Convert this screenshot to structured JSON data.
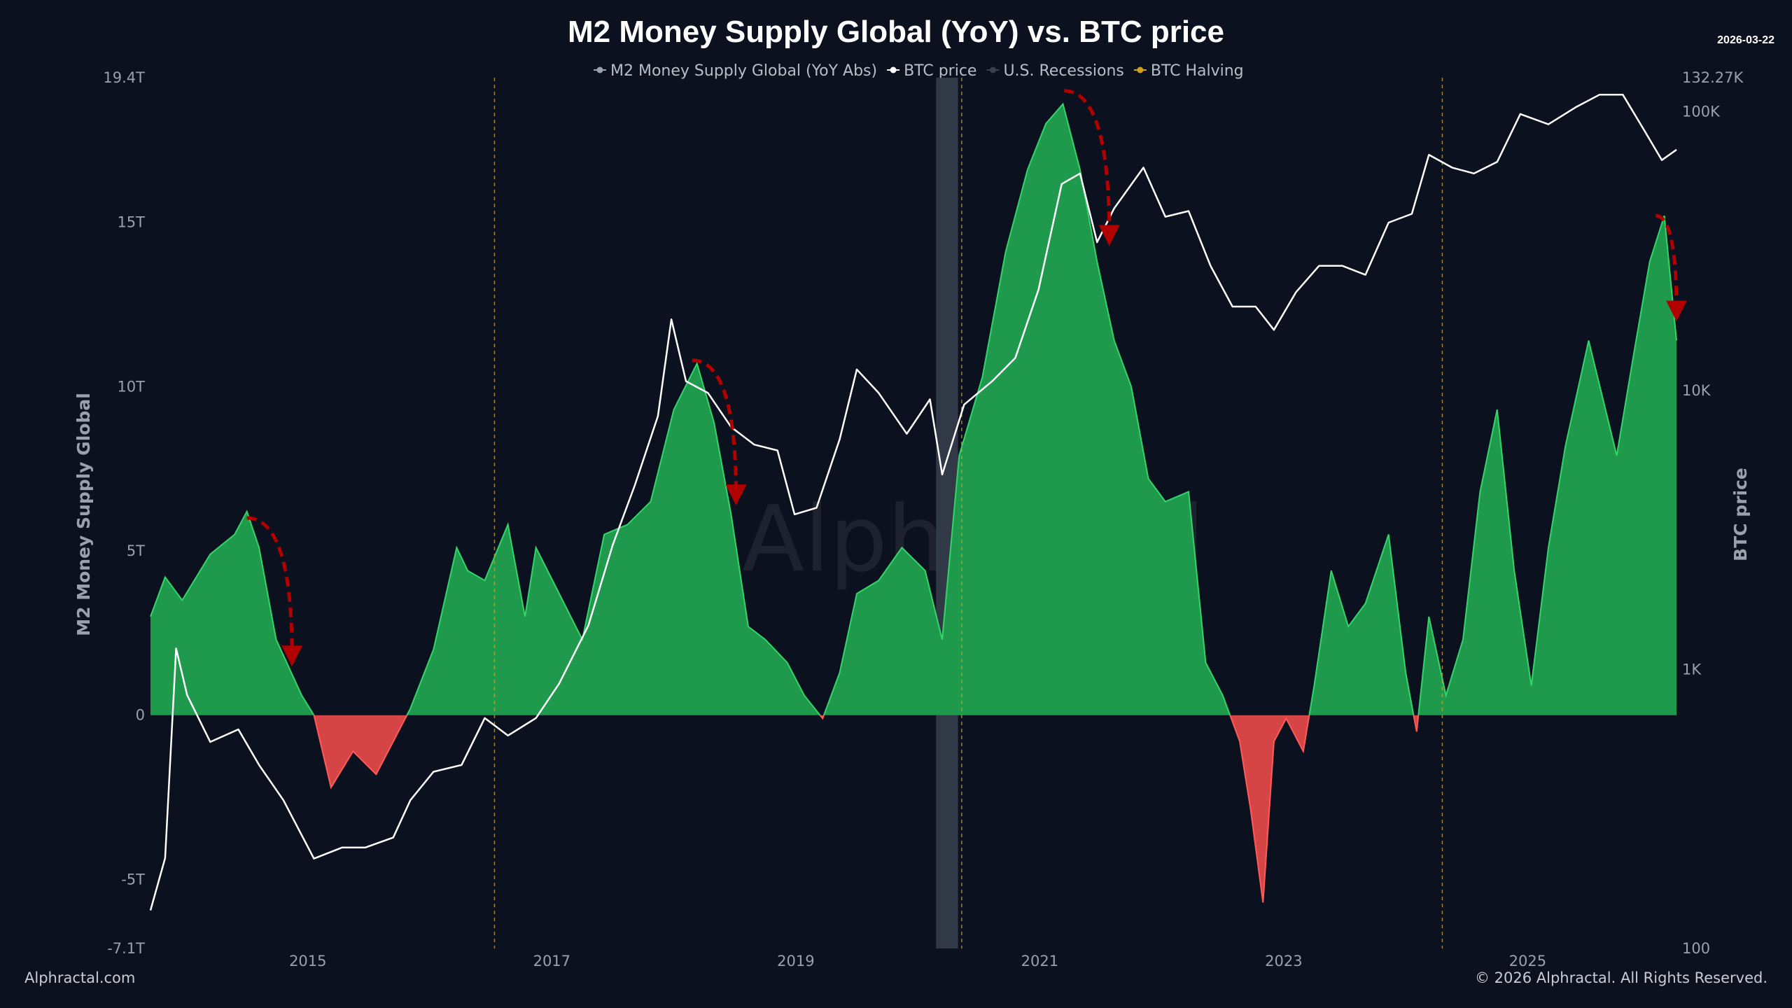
{
  "chart_data": {
    "type": "area",
    "title": "M2 Money Supply Global (YoY) vs. BTC price",
    "date_stamp": "2026-03-22",
    "ylabel": "M2 Money Supply Global",
    "y2label": "BTC price",
    "ylim": [
      -7.1,
      19.4
    ],
    "y2lim": [
      100,
      132270
    ],
    "y2scale": "log",
    "xlim": [
      2013.71,
      2026.22
    ],
    "grid": false,
    "legend_position": "top-center",
    "x_ticks": [
      "2015",
      "2017",
      "2019",
      "2021",
      "2023",
      "2025"
    ],
    "x_tick_values": [
      2015,
      2017,
      2019,
      2021,
      2023,
      2025
    ],
    "y_ticks": [
      "19.4T",
      "15T",
      "10T",
      "5T",
      "0",
      "-5T",
      "-7.1T"
    ],
    "y_tick_values": [
      19.4,
      15,
      10,
      5,
      0,
      -5,
      -7.1
    ],
    "y2_ticks": [
      "132.27K",
      "100K",
      "10K",
      "1K",
      "100"
    ],
    "y2_tick_values": [
      132270,
      100000,
      10000,
      1000,
      100
    ],
    "legend": [
      {
        "label": "M2 Money Supply Global (YoY Abs)",
        "color": "#9aa1ad"
      },
      {
        "label": "BTC price",
        "color": "#ffffff"
      },
      {
        "label": "U.S. Recessions",
        "color": "#3a414e"
      },
      {
        "label": "BTC Halving",
        "color": "#d4a017"
      }
    ],
    "colors": {
      "positive": "#1f9a4c",
      "positive_edge": "#35d46a",
      "negative": "#d64545",
      "btc": "#ffffff",
      "background": "#0b111e",
      "annotation": "#b00000"
    },
    "series": [
      {
        "name": "M2 Money Supply Global (YoY Abs)",
        "unit": "T",
        "x": [
          2013.71,
          2013.83,
          2013.97,
          2014.2,
          2014.4,
          2014.5,
          2014.6,
          2014.74,
          2014.95,
          2015.05,
          2015.19,
          2015.37,
          2015.56,
          2015.7,
          2015.84,
          2016.03,
          2016.22,
          2016.31,
          2016.45,
          2016.64,
          2016.78,
          2016.87,
          2017.06,
          2017.25,
          2017.43,
          2017.62,
          2017.81,
          2018.0,
          2018.19,
          2018.33,
          2018.47,
          2018.61,
          2018.75,
          2018.93,
          2019.07,
          2019.22,
          2019.36,
          2019.5,
          2019.68,
          2019.87,
          2020.06,
          2020.2,
          2020.34,
          2020.53,
          2020.72,
          2020.9,
          2021.05,
          2021.19,
          2021.33,
          2021.47,
          2021.61,
          2021.75,
          2021.89,
          2022.03,
          2022.22,
          2022.36,
          2022.5,
          2022.64,
          2022.73,
          2022.83,
          2022.92,
          2023.02,
          2023.16,
          2023.25,
          2023.39,
          2023.53,
          2023.67,
          2023.86,
          2024.0,
          2024.09,
          2024.19,
          2024.33,
          2024.47,
          2024.61,
          2024.75,
          2024.89,
          2025.03,
          2025.17,
          2025.31,
          2025.5,
          2025.73,
          2025.87,
          2026.0,
          2026.12,
          2026.22
        ],
        "values": [
          3.0,
          4.2,
          3.5,
          4.9,
          5.5,
          6.2,
          5.1,
          2.3,
          0.6,
          0,
          -2.2,
          -1.1,
          -1.8,
          -0.8,
          0.2,
          2.0,
          5.1,
          4.4,
          4.1,
          5.8,
          3.0,
          5.1,
          3.7,
          2.3,
          5.5,
          5.8,
          6.5,
          9.3,
          10.7,
          8.9,
          6.1,
          2.7,
          2.3,
          1.6,
          0.6,
          -0.1,
          1.3,
          3.7,
          4.1,
          5.1,
          4.4,
          2.3,
          7.9,
          10.3,
          14.1,
          16.6,
          18.0,
          18.6,
          16.6,
          13.8,
          11.4,
          10.0,
          7.2,
          6.5,
          6.8,
          1.6,
          0.6,
          -0.8,
          -2.9,
          -5.7,
          -0.8,
          -0.1,
          -1.1,
          0.9,
          4.4,
          2.7,
          3.4,
          5.5,
          1.3,
          -0.5,
          3.0,
          0.6,
          2.3,
          6.8,
          9.3,
          4.4,
          0.9,
          5.1,
          8.2,
          11.4,
          7.9,
          11.0,
          13.8,
          15.2,
          11.4
        ]
      },
      {
        "name": "BTC price",
        "unit": "USD",
        "x": [
          2013.71,
          2013.83,
          2013.92,
          2014.01,
          2014.2,
          2014.43,
          2014.6,
          2014.8,
          2015.05,
          2015.28,
          2015.47,
          2015.7,
          2015.84,
          2016.03,
          2016.26,
          2016.45,
          2016.64,
          2016.87,
          2017.06,
          2017.3,
          2017.5,
          2017.68,
          2017.87,
          2017.98,
          2018.1,
          2018.28,
          2018.47,
          2018.66,
          2018.85,
          2018.99,
          2019.17,
          2019.36,
          2019.5,
          2019.68,
          2019.91,
          2020.1,
          2020.2,
          2020.38,
          2020.61,
          2020.8,
          2020.99,
          2021.18,
          2021.33,
          2021.47,
          2021.61,
          2021.85,
          2022.03,
          2022.22,
          2022.4,
          2022.58,
          2022.77,
          2022.92,
          2023.1,
          2023.29,
          2023.48,
          2023.67,
          2023.86,
          2024.05,
          2024.19,
          2024.38,
          2024.56,
          2024.75,
          2024.94,
          2025.17,
          2025.4,
          2025.59,
          2025.78,
          2025.96,
          2026.1,
          2026.22
        ],
        "values": [
          137,
          211,
          1190,
          810,
          550,
          610,
          455,
          340,
          210,
          230,
          230,
          250,
          340,
          430,
          455,
          670,
          580,
          670,
          890,
          1440,
          2800,
          4570,
          8100,
          18000,
          10800,
          9800,
          7400,
          6400,
          6100,
          3600,
          3800,
          6700,
          11900,
          9800,
          7000,
          9300,
          5000,
          8900,
          10800,
          13100,
          23000,
          55000,
          60000,
          34000,
          45000,
          63000,
          42000,
          44000,
          28000,
          20000,
          20000,
          16500,
          22500,
          28000,
          28000,
          26000,
          40000,
          43000,
          70000,
          63000,
          60000,
          66000,
          98000,
          90000,
          104000,
          115000,
          115000,
          85000,
          67000,
          73000
        ]
      }
    ],
    "recessions": [
      [
        2020.15,
        2020.33
      ]
    ],
    "halvings": [
      2016.53,
      2020.36,
      2024.3
    ],
    "annotations": [
      {
        "type": "arrow",
        "from": [
          2014.5,
          6.0
        ],
        "to": [
          2014.87,
          1.8
        ]
      },
      {
        "type": "arrow",
        "from": [
          2018.15,
          10.8
        ],
        "to": [
          2018.51,
          6.7
        ]
      },
      {
        "type": "arrow",
        "from": [
          2021.2,
          19.0
        ],
        "to": [
          2021.57,
          14.6
        ]
      },
      {
        "type": "arrow",
        "from": [
          2026.05,
          15.2
        ],
        "to": [
          2026.22,
          12.3
        ]
      }
    ]
  },
  "watermark": "Alphractal",
  "footer": {
    "left": "Alphractal.com",
    "right": "© 2026 Alphractal. All Rights Reserved."
  }
}
